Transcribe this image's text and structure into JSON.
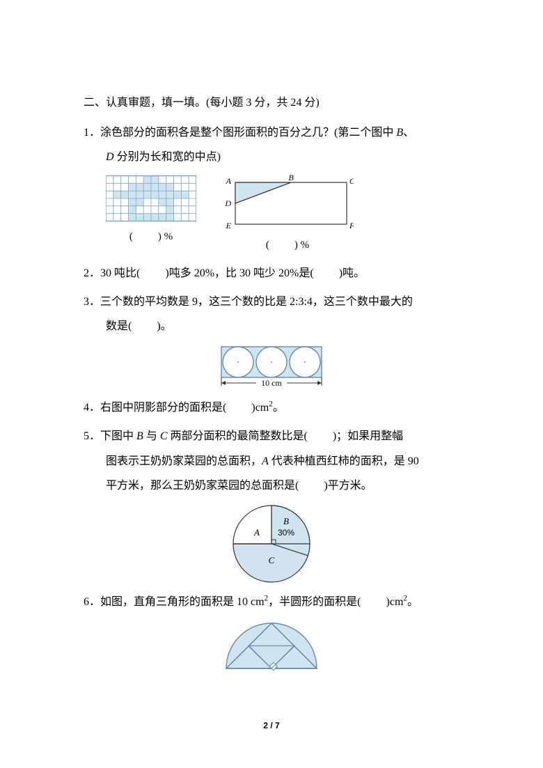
{
  "section": {
    "header": "二、认真审题，填一填。(每小题 3 分，共 24 分)"
  },
  "q1": {
    "num": "1．",
    "line1": "涂色部分的面积各是整个图形面积的百分之几？(第二个图中 ",
    "B": "B",
    "punct1": "、",
    "line2_prefix": "",
    "D": "D",
    "line2_rest": " 分别为长和宽的中点)",
    "fig1_label_l": "(",
    "fig1_label_r": ") %",
    "fig2_label_l": "(",
    "fig2_label_r": ") %",
    "fig2": {
      "A": "A",
      "B": "B",
      "C": "C",
      "D": "D",
      "E": "E",
      "F": "F"
    },
    "grid": {
      "cols": 12,
      "rows": 6,
      "cell": 10,
      "stroke": "#7fa8c9",
      "fill": "#cfe4ef"
    },
    "rect": {
      "stroke": "#333",
      "fill": "#cfe4ef"
    }
  },
  "q2": {
    "num": "2．",
    "t1": "30 吨比(",
    "t2": ")吨多 20%，比 30 吨少 20%是(",
    "t3": ")吨。"
  },
  "q3": {
    "num": "3．",
    "t1": "三个数的平均数是 9，这三个数的比是 2:3:4，这三个数中最大的",
    "t2": "数是(",
    "t3": ")。"
  },
  "q4": {
    "num": "4．",
    "text_before": "右图中阴影部分的面积是(",
    "text_after": ")cm",
    "sq": "2",
    "period": "。",
    "fig": {
      "label": "10 cm",
      "stroke": "#6b8aa8",
      "fill_bg": "#cfe4ef",
      "fill_circle": "#ffffff"
    }
  },
  "q5": {
    "num": "5．",
    "l1a": "下图中 ",
    "B": "B",
    "l1b": " 与 ",
    "C": "C",
    "l1c": " 两部分面积的最简整数比是(",
    "l1d": ")；如果用整幅",
    "l2a": "图表示王奶奶家菜园的总面积，",
    "A": "A",
    "l2b": " 代表种植西红柿的面积，是 90",
    "l3a": "平方米，那么王奶奶家菜园的总面积是(",
    "l3b": ")平方米。",
    "fig": {
      "labelA": "A",
      "labelB": "B",
      "labelC": "C",
      "pct": "30%",
      "fill_bg": "#ffffff",
      "fill_C": "#cfe4ef",
      "stroke": "#333"
    }
  },
  "q6": {
    "num": "6．",
    "t1": "如图，直角三角形的面积是 10 cm",
    "sq1": "2",
    "t2": "，半圆形的面积是(",
    "t3": ")cm",
    "sq2": "2",
    "t4": "。",
    "fig": {
      "fill": "#cfe4ef",
      "stroke": "#6b8aa8",
      "fill_tri": "#ffffff"
    }
  },
  "footer": {
    "page": "2",
    "sep": "/ ",
    "total": "7"
  }
}
